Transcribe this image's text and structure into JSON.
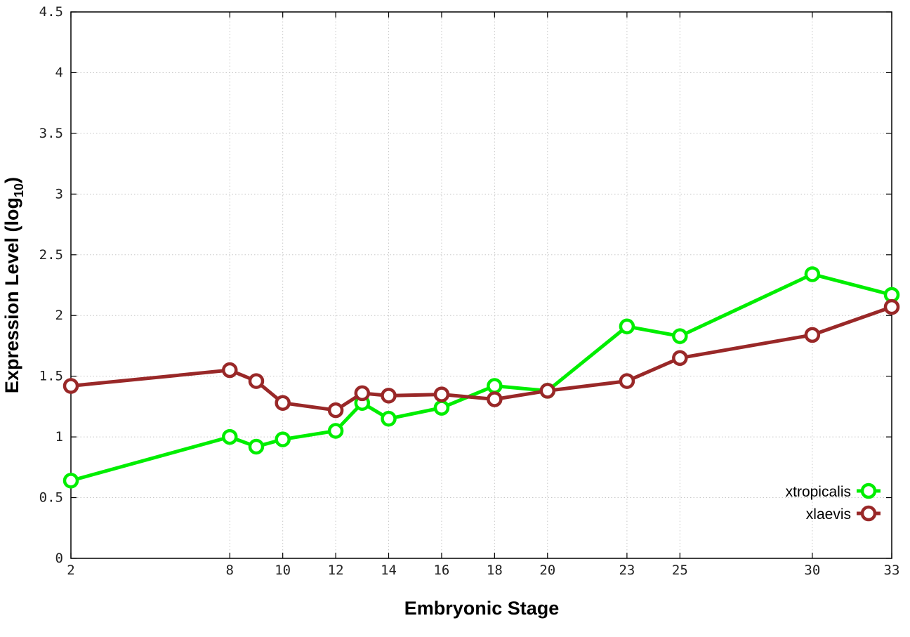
{
  "chart_data": {
    "type": "line",
    "xlabel": "Embryonic Stage",
    "ylabel": "Expression Level (log",
    "ylabel_sub": "10",
    "ylabel_end": ")",
    "xlim": [
      2,
      33
    ],
    "ylim": [
      0,
      4.5
    ],
    "x_ticks": [
      2,
      8,
      10,
      12,
      14,
      16,
      18,
      20,
      23,
      25,
      30,
      33
    ],
    "x_tick_labels": [
      "2",
      "8",
      "10",
      "12",
      "14",
      "16",
      "18",
      "20",
      "23",
      "25",
      "30",
      "33"
    ],
    "y_ticks": [
      0,
      0.5,
      1,
      1.5,
      2,
      2.5,
      3,
      3.5,
      4,
      4.5
    ],
    "y_tick_labels": [
      "0",
      "0.5",
      "1",
      "1.5",
      "2",
      "2.5",
      "3",
      "3.5",
      "4",
      "4.5"
    ],
    "grid": true,
    "legend_position": "bottom-right",
    "series": [
      {
        "name": "xtropicalis",
        "color": "#00ee00",
        "x": [
          2,
          8,
          9,
          10,
          12,
          13,
          14,
          16,
          18,
          20,
          23,
          25,
          30,
          33
        ],
        "y": [
          0.64,
          1.0,
          0.92,
          0.98,
          1.05,
          1.28,
          1.15,
          1.24,
          1.42,
          1.38,
          1.91,
          1.83,
          2.34,
          2.17
        ]
      },
      {
        "name": "xlaevis",
        "color": "#992828",
        "x": [
          2,
          8,
          9,
          10,
          12,
          13,
          14,
          16,
          18,
          20,
          23,
          25,
          30,
          33
        ],
        "y": [
          1.42,
          1.55,
          1.46,
          1.28,
          1.22,
          1.36,
          1.34,
          1.35,
          1.31,
          1.38,
          1.46,
          1.65,
          1.84,
          2.07
        ]
      }
    ]
  }
}
